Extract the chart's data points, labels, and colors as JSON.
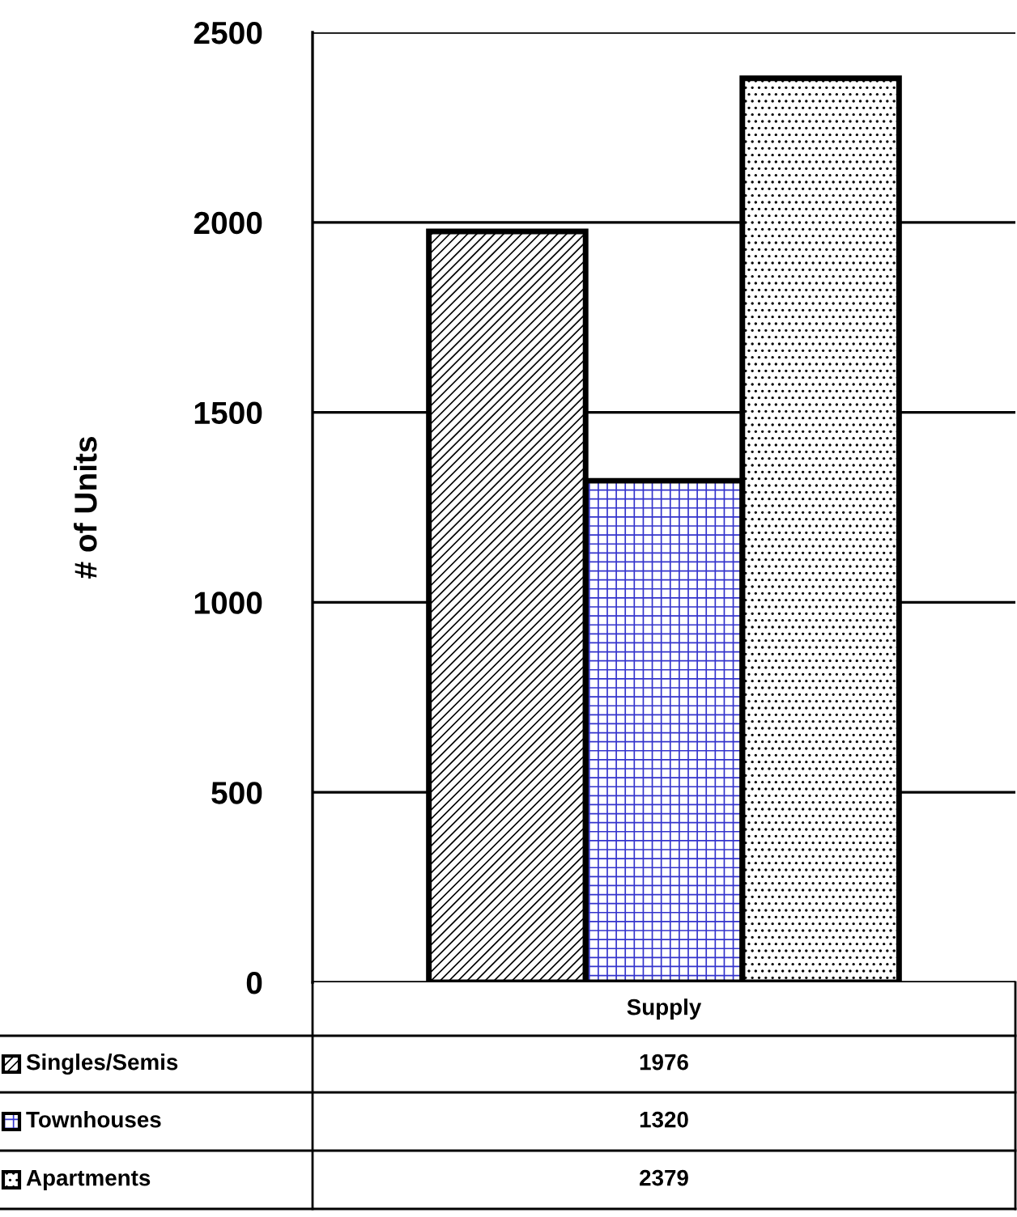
{
  "chart_data": {
    "type": "bar",
    "ylabel": "# of Units",
    "categories": [
      "Supply"
    ],
    "series": [
      {
        "name": "Singles/Semis",
        "color": "#000000",
        "values": [
          1976
        ]
      },
      {
        "name": "Townhouses",
        "color": "#3333cc",
        "values": [
          1320
        ]
      },
      {
        "name": "Apartments",
        "color": "#000000",
        "values": [
          2379
        ]
      }
    ],
    "annotations": [
      "1976",
      "1320",
      "2379"
    ],
    "ylim": [
      0,
      2500
    ],
    "yticks": [
      0,
      500,
      1000,
      1500,
      2000,
      2500
    ],
    "grid": "y",
    "legend": "bottom left"
  }
}
